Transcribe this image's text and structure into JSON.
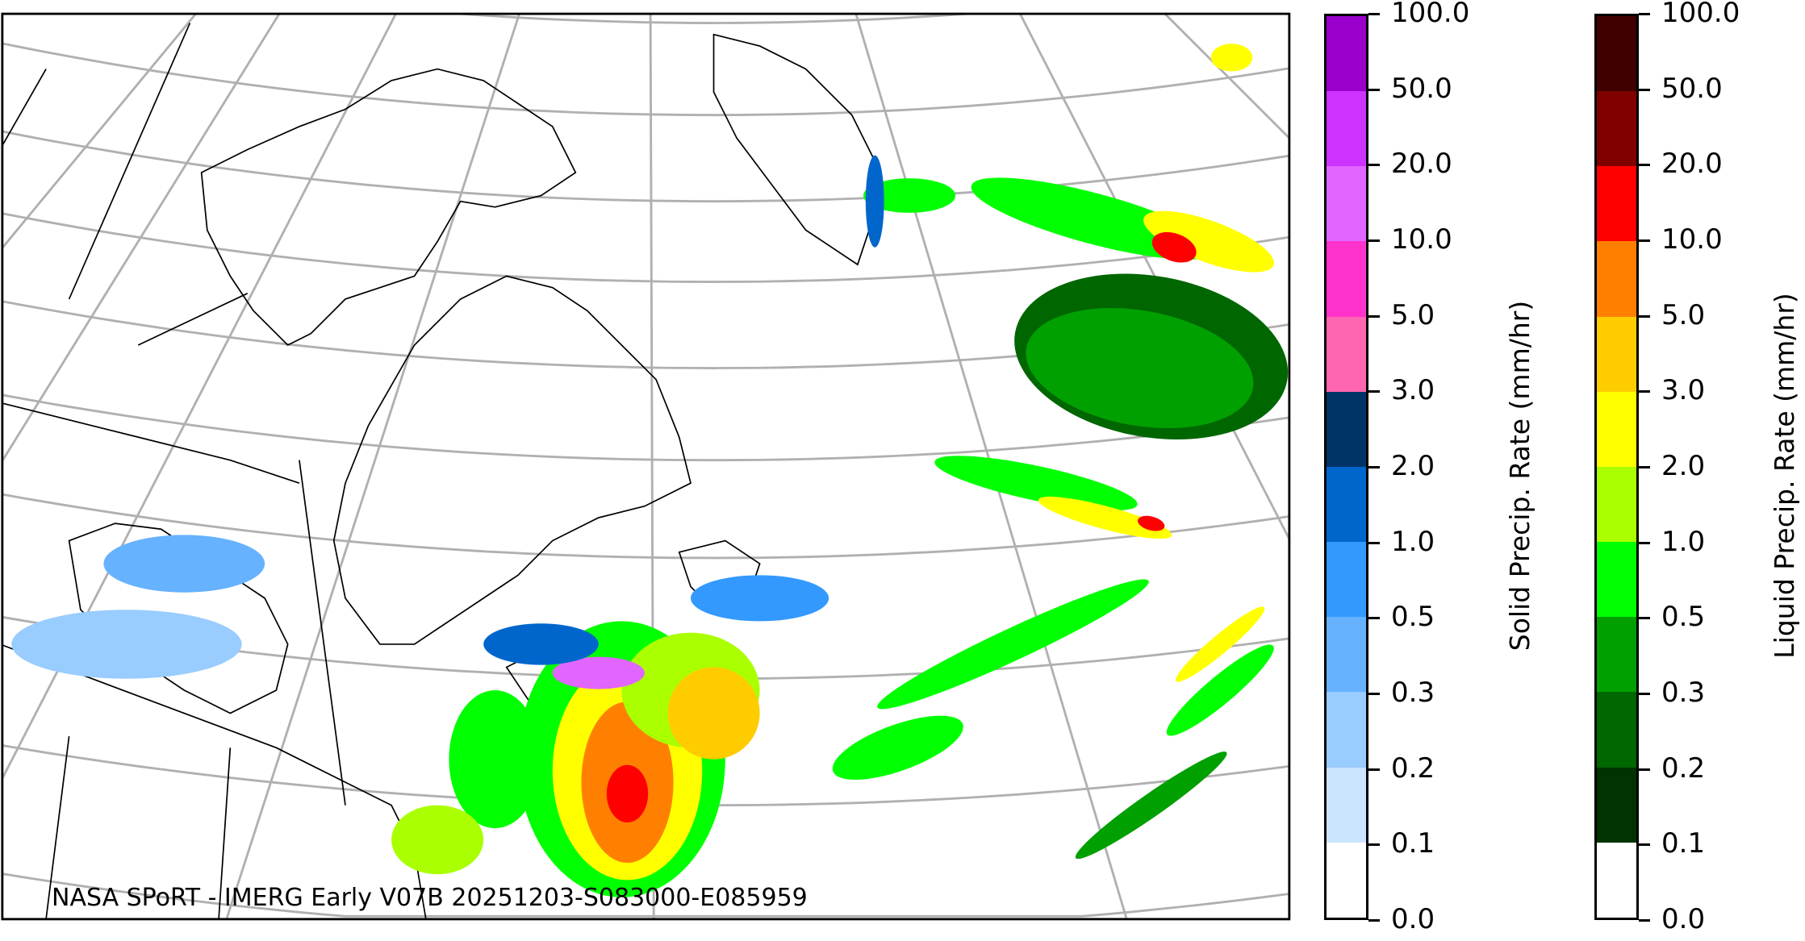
{
  "caption": "NASA SPoRT - IMERG Early V07B 20251203-S083000-E085959",
  "solid_colorbar": {
    "label": "Solid Precip. Rate (mm/hr)",
    "ticks": [
      "0.0",
      "0.1",
      "0.2",
      "0.3",
      "0.5",
      "1.0",
      "2.0",
      "3.0",
      "5.0",
      "10.0",
      "20.0",
      "50.0",
      "100.0"
    ],
    "colors": [
      "#ffffff",
      "#cce5ff",
      "#99ccff",
      "#66b2ff",
      "#3399ff",
      "#0066cc",
      "#003366",
      "#ff66b2",
      "#ff33cc",
      "#e066ff",
      "#cc33ff",
      "#9900cc"
    ]
  },
  "liquid_colorbar": {
    "label": "Liquid Precip. Rate (mm/hr)",
    "ticks": [
      "0.0",
      "0.1",
      "0.2",
      "0.3",
      "0.5",
      "1.0",
      "2.0",
      "3.0",
      "5.0",
      "10.0",
      "20.0",
      "50.0",
      "100.0"
    ],
    "colors": [
      "#ffffff",
      "#003300",
      "#006600",
      "#00a000",
      "#00ff00",
      "#aaff00",
      "#ffff00",
      "#ffcc00",
      "#ff8000",
      "#ff0000",
      "#800000",
      "#400000"
    ]
  },
  "graticule_color": "#b0b0b0"
}
